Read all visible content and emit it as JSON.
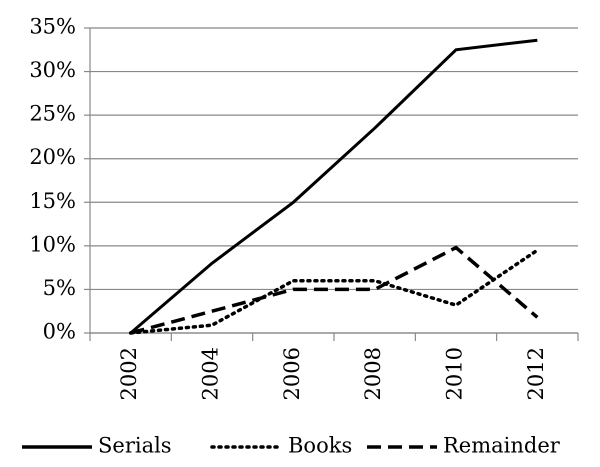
{
  "chart_data": {
    "type": "line",
    "categories": [
      "2002",
      "2004",
      "2006",
      "2008",
      "2010",
      "2012"
    ],
    "series": [
      {
        "name": "Serials",
        "color": "#000000",
        "dash": "solid",
        "values": [
          0,
          8,
          15,
          23.5,
          32.5,
          33.6
        ]
      },
      {
        "name": "Books",
        "color": "#000000",
        "dash": "dotted",
        "values": [
          0,
          0.9,
          6,
          6,
          3.2,
          9.5
        ]
      },
      {
        "name": "Remainder",
        "color": "#000000",
        "dash": "dashed",
        "values": [
          0,
          2.5,
          5,
          5,
          9.8,
          1.8
        ]
      }
    ],
    "ylim": [
      0,
      35
    ],
    "yticks": [
      {
        "value": 0,
        "label": "0%"
      },
      {
        "value": 5,
        "label": "5%"
      },
      {
        "value": 10,
        "label": "10%"
      },
      {
        "value": 15,
        "label": "15%"
      },
      {
        "value": 20,
        "label": "20%"
      },
      {
        "value": 25,
        "label": "25%"
      },
      {
        "value": 30,
        "label": "30%"
      },
      {
        "value": 35,
        "label": "35%"
      }
    ],
    "grid": true,
    "legend": "bottom"
  }
}
